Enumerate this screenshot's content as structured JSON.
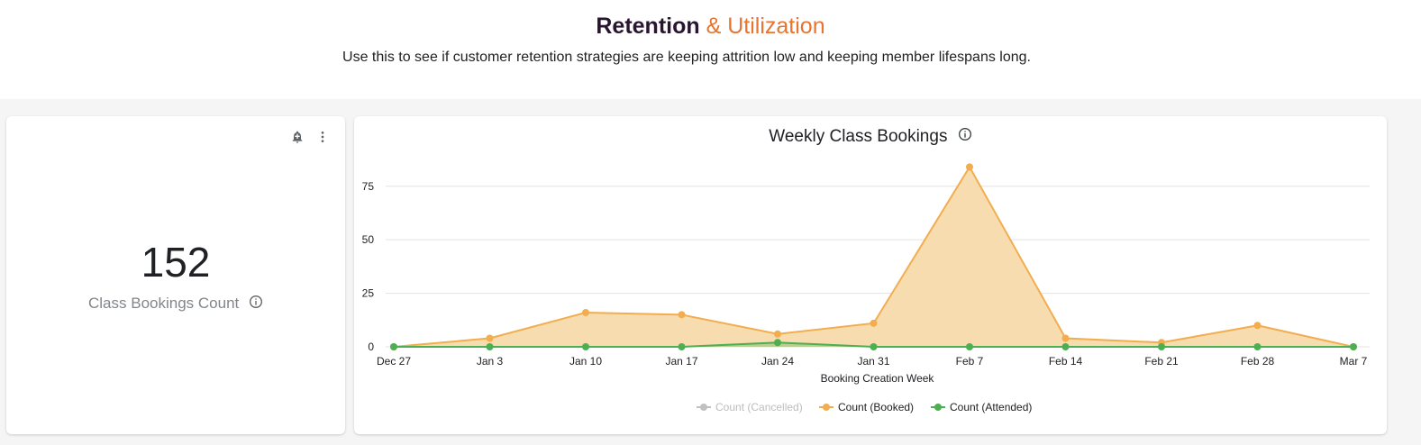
{
  "header": {
    "title_part1": "Retention",
    "title_part2": "& Utilization",
    "subtitle": "Use this to see if customer retention strategies are keeping attrition low and keeping member lifespans long."
  },
  "kpi": {
    "value": "152",
    "label": "Class Bookings Count"
  },
  "colors": {
    "booked": "#f2ad4e",
    "booked_fill": "#f7dcb0",
    "attended": "#4caf50",
    "cancelled": "#c0c0c0",
    "title_dark": "#2a1530",
    "title_accent": "#e8742f"
  },
  "icons": [
    "alert-add-icon",
    "more-vert-icon",
    "info-icon"
  ],
  "chart_data": {
    "type": "area",
    "title": "Weekly Class Bookings",
    "xlabel": "Booking Creation Week",
    "ylabel": "",
    "categories": [
      "Dec 27",
      "Jan 3",
      "Jan 10",
      "Jan 17",
      "Jan 24",
      "Jan 31",
      "Feb 7",
      "Feb 14",
      "Feb 21",
      "Feb 28",
      "Mar 7"
    ],
    "yticks": [
      0,
      25,
      50,
      75
    ],
    "ylim": [
      0,
      85
    ],
    "grid": true,
    "legend_position": "bottom",
    "series": [
      {
        "name": "Count (Cancelled)",
        "values": [
          0,
          0,
          0,
          0,
          0,
          0,
          0,
          0,
          0,
          0,
          0
        ],
        "hidden": true
      },
      {
        "name": "Count (Booked)",
        "values": [
          0,
          4,
          16,
          15,
          6,
          11,
          84,
          4,
          2,
          10,
          0
        ]
      },
      {
        "name": "Count (Attended)",
        "values": [
          0,
          0,
          0,
          0,
          2,
          0,
          0,
          0,
          0,
          0,
          0
        ]
      }
    ]
  }
}
